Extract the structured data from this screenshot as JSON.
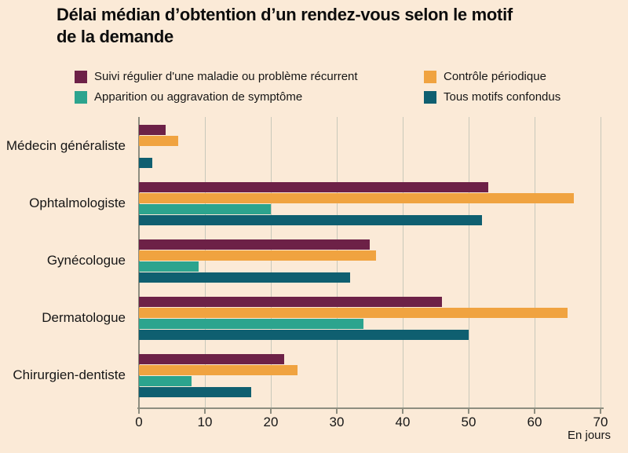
{
  "title": {
    "line1": "Délai médian d’obtention d’un rendez-vous selon le motif",
    "line2": "de la demande"
  },
  "chart_data": {
    "type": "bar",
    "orientation": "horizontal",
    "title": "Délai médian d’obtention d’un rendez-vous selon le motif de la demande",
    "categories": [
      "Médecin généraliste",
      "Ophtalmologiste",
      "Gynécologue",
      "Dermatologue",
      "Chirurgien-dentiste"
    ],
    "series": [
      {
        "name": "Suivi régulier d'une maladie ou problème récurrent",
        "color": "#6d2147",
        "values": [
          4,
          53,
          35,
          46,
          22
        ]
      },
      {
        "name": "Contrôle périodique",
        "color": "#f0a340",
        "values": [
          6,
          66,
          36,
          65,
          24
        ]
      },
      {
        "name": "Apparition ou aggravation de symptôme",
        "color": "#2ca48e",
        "values": [
          0,
          20,
          9,
          34,
          8
        ]
      },
      {
        "name": "Tous motifs confondus",
        "color": "#0f5f70",
        "values": [
          2,
          52,
          32,
          50,
          17
        ]
      }
    ],
    "xlim": [
      0,
      70
    ],
    "xticks": [
      0,
      10,
      20,
      30,
      40,
      50,
      60,
      70
    ],
    "x_unit_label": "En jours",
    "grid": true,
    "legend_position": "top"
  },
  "colors": {
    "background": "#fbead7",
    "gridline": "#c8c8ba",
    "axis": "#8e8e80",
    "text": "#161616"
  }
}
